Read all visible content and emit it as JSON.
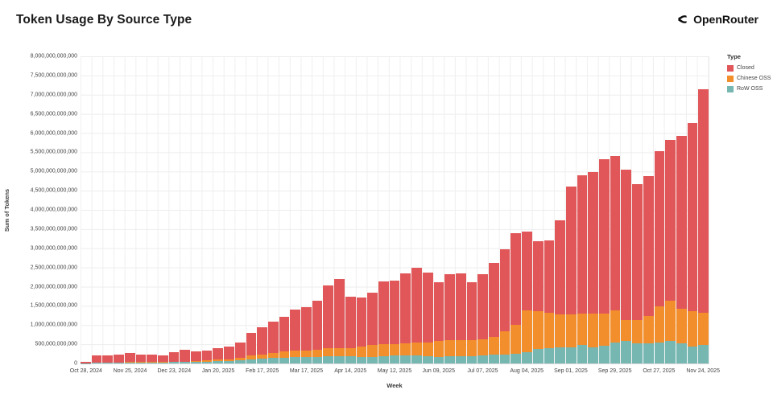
{
  "header": {
    "title": "Token Usage By Source Type",
    "brand": "OpenRouter",
    "brand_icon": "openrouter-chevron"
  },
  "chart_data": {
    "type": "bar",
    "stacked": true,
    "title": "Token Usage By Source Type",
    "xlabel": "Week",
    "ylabel": "Sum of Tokens",
    "ylim_billions": [
      0,
      8000
    ],
    "grid": true,
    "unit": "tokens, values in billions",
    "weeks": [
      "Oct 28, 2024",
      "Nov 04, 2024",
      "Nov 11, 2024",
      "Nov 18, 2024",
      "Nov 25, 2024",
      "Dec 02, 2024",
      "Dec 09, 2024",
      "Dec 16, 2024",
      "Dec 23, 2024",
      "Dec 30, 2024",
      "Jan 06, 2025",
      "Jan 13, 2025",
      "Jan 20, 2025",
      "Jan 27, 2025",
      "Feb 03, 2025",
      "Feb 10, 2025",
      "Feb 17, 2025",
      "Feb 24, 2025",
      "Mar 03, 2025",
      "Mar 10, 2025",
      "Mar 17, 2025",
      "Mar 24, 2025",
      "Mar 31, 2025",
      "Apr 07, 2025",
      "Apr 14, 2025",
      "Apr 21, 2025",
      "Apr 28, 2025",
      "May 05, 2025",
      "May 12, 2025",
      "May 19, 2025",
      "May 26, 2025",
      "Jun 02, 2025",
      "Jun 09, 2025",
      "Jun 16, 2025",
      "Jun 23, 2025",
      "Jun 30, 2025",
      "Jul 07, 2025",
      "Jul 14, 2025",
      "Jul 21, 2025",
      "Jul 28, 2025",
      "Aug 04, 2025",
      "Aug 11, 2025",
      "Aug 18, 2025",
      "Aug 25, 2025",
      "Sep 01, 2025",
      "Sep 08, 2025",
      "Sep 15, 2025",
      "Sep 22, 2025",
      "Sep 29, 2025",
      "Oct 06, 2025",
      "Oct 13, 2025",
      "Oct 20, 2025",
      "Oct 27, 2025",
      "Nov 03, 2025",
      "Nov 10, 2025",
      "Nov 17, 2025",
      "Nov 24, 2025"
    ],
    "series": [
      {
        "name": "RoW OSS",
        "color": "#76b7b2",
        "values_billions": [
          5,
          15,
          15,
          20,
          25,
          25,
          25,
          25,
          35,
          40,
          45,
          50,
          60,
          70,
          85,
          110,
          130,
          140,
          150,
          160,
          165,
          175,
          190,
          195,
          190,
          170,
          175,
          190,
          200,
          215,
          215,
          190,
          175,
          181,
          188,
          195,
          209,
          223,
          237,
          258,
          286,
          377,
          398,
          412,
          426,
          480,
          420,
          461,
          551,
          586,
          516,
          516,
          551,
          586,
          516,
          447,
          482
        ]
      },
      {
        "name": "Chinese OSS",
        "color": "#f28e2b",
        "values_billions": [
          2,
          5,
          5,
          6,
          8,
          8,
          8,
          8,
          10,
          12,
          20,
          25,
          35,
          45,
          60,
          90,
          110,
          140,
          161,
          182,
          168,
          182,
          210,
          210,
          200,
          280,
          300,
          308,
          310,
          315,
          330,
          360,
          411,
          419,
          426,
          412,
          419,
          468,
          593,
          747,
          1095,
          977,
          921,
          872,
          858,
          810,
          870,
          830,
          840,
          550,
          620,
          730,
          940,
          1047,
          905,
          905,
          840
        ]
      },
      {
        "name": "Closed",
        "color": "#e15759",
        "values_billions": [
          43,
          190,
          180,
          214,
          247,
          207,
          197,
          187,
          245,
          298,
          255,
          255,
          305,
          335,
          395,
          600,
          700,
          820,
          909,
          1058,
          1127,
          1273,
          1640,
          1785,
          1350,
          1270,
          1365,
          1642,
          1640,
          1820,
          1955,
          1820,
          1534,
          1720,
          1736,
          1513,
          1702,
          1919,
          2140,
          2395,
          2049,
          1826,
          1881,
          2446,
          3316,
          3620,
          3690,
          4039,
          4009,
          3914,
          3534,
          3634,
          4049,
          4187,
          4509,
          4918,
          5828
        ]
      }
    ],
    "ytick_labels": [
      "8,000,000,000,000",
      "7,500,000,000,000",
      "7,000,000,000,000",
      "6,500,000,000,000",
      "6,000,000,000,000",
      "5,500,000,000,000",
      "5,000,000,000,000",
      "4,500,000,000,000",
      "4,000,000,000,000",
      "3,500,000,000,000",
      "3,000,000,000,000",
      "2,500,000,000,000",
      "2,000,000,000,000",
      "1,500,000,000,000",
      "1,000,000,000,000",
      "500,000,000,000",
      "0"
    ],
    "xtick_labels": [
      "Oct 28, 2024",
      "Nov 25, 2024",
      "Dec 23, 2024",
      "Jan 20, 2025",
      "Feb 17, 2025",
      "Mar 17, 2025",
      "Apr 14, 2025",
      "May 12, 2025",
      "Jun 09, 2025",
      "Jul 07, 2025",
      "Aug 04, 2025",
      "Sep 01, 2025",
      "Sep 29, 2025",
      "Oct 27, 2025",
      "Nov 24, 2025"
    ],
    "xtick_every": 4,
    "legend_position": "right",
    "grid_color": "#ededed"
  },
  "legend": {
    "title": "Type",
    "items": [
      {
        "label": "Closed",
        "color": "#e15759"
      },
      {
        "label": "Chinese OSS",
        "color": "#f28e2b"
      },
      {
        "label": "RoW OSS",
        "color": "#76b7b2"
      }
    ]
  }
}
